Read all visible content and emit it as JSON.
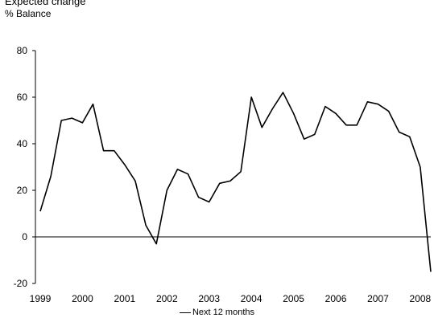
{
  "header": {
    "partial_title": "Expected change"
  },
  "chart_data": {
    "type": "line",
    "ylabel": "% Balance",
    "xlabel": "",
    "ylim": [
      -20,
      80
    ],
    "yticks": [
      "-20",
      "0",
      "20",
      "40",
      "60",
      "80"
    ],
    "xticks": [
      "1999",
      "2000",
      "2001",
      "2002",
      "2003",
      "2004",
      "2005",
      "2006",
      "2007",
      "2008"
    ],
    "legend_position": "bottom",
    "series": [
      {
        "name": "Next 12 months",
        "color": "#000000",
        "x": [
          1999.0,
          1999.25,
          1999.5,
          1999.75,
          2000.0,
          2000.25,
          2000.5,
          2000.75,
          2001.0,
          2001.25,
          2001.5,
          2001.75,
          2002.0,
          2002.25,
          2002.5,
          2002.75,
          2003.0,
          2003.25,
          2003.5,
          2003.75,
          2004.0,
          2004.25,
          2004.5,
          2004.75,
          2005.0,
          2005.25,
          2005.5,
          2005.75,
          2006.0,
          2006.25,
          2006.5,
          2006.75,
          2007.0,
          2007.25,
          2007.5,
          2007.75,
          2008.0,
          2008.25
        ],
        "values": [
          11,
          26,
          50,
          51,
          49,
          57,
          37,
          37,
          31,
          24,
          5,
          -3,
          20,
          29,
          27,
          17,
          15,
          23,
          24,
          28,
          60,
          47,
          55,
          62,
          53,
          42,
          44,
          56,
          53,
          48,
          48,
          58,
          57,
          54,
          45,
          43,
          30,
          -15
        ]
      }
    ]
  }
}
